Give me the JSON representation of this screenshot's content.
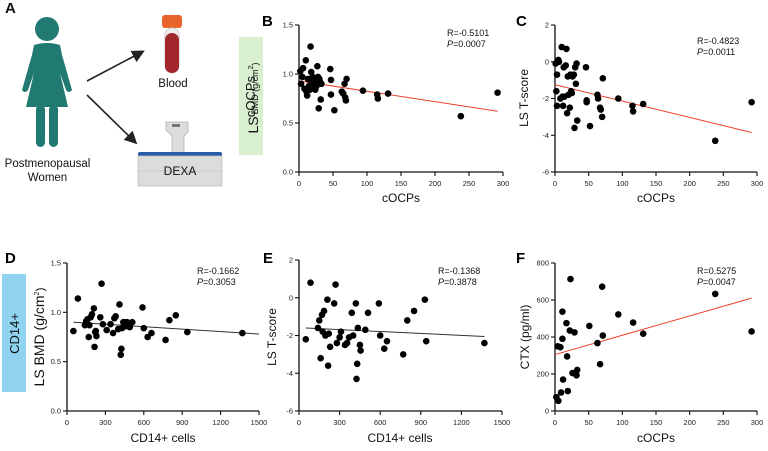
{
  "panel_a": {
    "letter": "A",
    "subject_label_line1": "Postmenopausal",
    "subject_label_line2": "Women",
    "blood_label": "Blood",
    "dexa_label": "DEXA",
    "colors": {
      "figure": "#217a72",
      "tube_cap": "#e8642a",
      "tube_blood": "#a3262c",
      "dexa_top": "#2a5ca8",
      "dexa_body": "#dcdcdc"
    }
  },
  "row_labels": {
    "top": {
      "text": "cOCPs",
      "color": "#d8f0cf"
    },
    "bottom": {
      "text": "CD14+",
      "color": "#8fd3f0"
    }
  },
  "chart_data": [
    {
      "id": "B",
      "letter": "B",
      "type": "scatter",
      "xlabel": "cOCPs",
      "ylabel_main": "LS",
      "ylabel_sub": "BMD (g/cm",
      "ylabel_sup": "2",
      "ylabel_close": ")",
      "xlim": [
        0,
        300
      ],
      "ylim": [
        0,
        1.5
      ],
      "xticks": [
        0,
        50,
        100,
        150,
        200,
        250,
        300
      ],
      "yticks": [
        0.0,
        0.5,
        1.0,
        1.5
      ],
      "ytick_labels": [
        "0.0",
        "0.5",
        "1.0",
        "1.5"
      ],
      "stat_r": "R=-0.5101",
      "stat_p_label": "P",
      "stat_p": "=0.0007",
      "fit_color": "#e8402a",
      "fit": [
        [
          0,
          0.93
        ],
        [
          292,
          0.62
        ]
      ],
      "x": [
        2,
        3,
        5,
        6,
        8,
        10,
        11,
        12,
        13,
        15,
        16,
        17,
        18,
        19,
        20,
        21,
        22,
        23,
        24,
        25,
        26,
        27,
        28,
        29,
        30,
        31,
        32,
        33,
        46,
        47,
        47,
        52,
        63,
        65,
        67,
        68,
        69,
        70,
        94,
        115,
        116,
        131,
        238,
        292
      ],
      "y": [
        1.03,
        0.9,
        0.97,
        1.06,
        0.85,
        1.14,
        0.82,
        0.78,
        0.95,
        0.88,
        0.84,
        1.28,
        1.02,
        0.93,
        0.97,
        0.9,
        0.96,
        0.86,
        0.84,
        0.92,
        0.88,
        1.08,
        0.97,
        0.65,
        0.95,
        0.92,
        0.74,
        0.9,
        1.05,
        0.94,
        0.79,
        0.63,
        0.82,
        0.8,
        0.9,
        0.76,
        0.73,
        0.95,
        0.83,
        0.79,
        0.75,
        0.8,
        0.57,
        0.81
      ]
    },
    {
      "id": "C",
      "letter": "C",
      "type": "scatter",
      "xlabel": "cOCPs",
      "ylabel": "LS T-score",
      "xlim": [
        0,
        300
      ],
      "ylim": [
        -6,
        2
      ],
      "xticks": [
        0,
        50,
        100,
        150,
        200,
        250,
        300
      ],
      "yticks": [
        -6,
        -4,
        -2,
        0,
        2
      ],
      "ytick_labels": [
        "-6",
        "-4",
        "-2",
        "0",
        "2"
      ],
      "stat_r": "R=-0.4823",
      "stat_p_label": "P",
      "stat_p": "=0.0011",
      "fit_color": "#e8402a",
      "fit": [
        [
          0,
          -1.25
        ],
        [
          292,
          -3.85
        ]
      ],
      "x": [
        1,
        2,
        3,
        3,
        5,
        6,
        8,
        10,
        11,
        12,
        13,
        14,
        16,
        17,
        18,
        19,
        20,
        22,
        23,
        24,
        25,
        26,
        28,
        29,
        30,
        31,
        32,
        33,
        46,
        47,
        47,
        52,
        63,
        64,
        67,
        68,
        70,
        71,
        94,
        115,
        116,
        131,
        238,
        292
      ],
      "y": [
        -0.1,
        -1.6,
        -0.7,
        -2.4,
        0.1,
        0.0,
        -2.0,
        0.8,
        -1.9,
        -2.4,
        -0.3,
        -1.9,
        -0.2,
        0.7,
        -2.8,
        -0.8,
        -1.8,
        -2.5,
        -0.7,
        -1.6,
        -1.7,
        -0.8,
        -0.7,
        -3.6,
        -0.3,
        -1.2,
        -0.1,
        -3.2,
        -0.3,
        -2.2,
        -2.1,
        -3.5,
        -1.8,
        -2.0,
        -2.5,
        -2.6,
        -3.0,
        -0.9,
        -2.0,
        -2.4,
        -2.7,
        -2.3,
        -4.3,
        -2.2
      ]
    },
    {
      "id": "D",
      "letter": "D",
      "type": "scatter",
      "xlabel": "CD14+ cells",
      "ylabel_main": "LS BMD (g/cm",
      "ylabel_sup": "2",
      "ylabel_close": ")",
      "xlim": [
        0,
        1500
      ],
      "ylim": [
        0,
        1.5
      ],
      "xticks": [
        0,
        300,
        600,
        900,
        1200,
        1500
      ],
      "yticks": [
        0.0,
        0.5,
        1.0,
        1.5
      ],
      "ytick_labels": [
        "0.0",
        "0.5",
        "1.0",
        "1.5"
      ],
      "stat_r": "R=-0.1662",
      "stat_p_label": "P",
      "stat_p": "=0.3053",
      "fit_color": "#333333",
      "fit": [
        [
          50,
          0.9
        ],
        [
          1500,
          0.78
        ]
      ],
      "x": [
        50,
        85,
        140,
        150,
        160,
        170,
        175,
        185,
        195,
        210,
        215,
        220,
        225,
        230,
        260,
        270,
        280,
        310,
        340,
        360,
        370,
        380,
        400,
        410,
        420,
        425,
        430,
        440,
        450,
        460,
        470,
        490,
        510,
        590,
        600,
        630,
        660,
        770,
        800,
        850,
        940,
        1370
      ],
      "y": [
        0.81,
        1.14,
        0.87,
        0.91,
        0.93,
        0.75,
        0.87,
        0.95,
        0.98,
        1.04,
        0.65,
        0.8,
        0.81,
        0.76,
        0.95,
        1.29,
        0.88,
        0.82,
        0.88,
        0.79,
        0.94,
        0.96,
        0.83,
        1.08,
        0.57,
        0.63,
        0.84,
        0.9,
        0.9,
        0.86,
        0.9,
        0.85,
        0.9,
        1.05,
        0.84,
        0.75,
        0.79,
        0.72,
        0.92,
        0.97,
        0.8,
        0.79
      ]
    },
    {
      "id": "E",
      "letter": "E",
      "type": "scatter",
      "xlabel": "CD14+ cells",
      "ylabel": "LS T-score",
      "xlim": [
        0,
        1500
      ],
      "ylim": [
        -6,
        2
      ],
      "xticks": [
        0,
        300,
        600,
        900,
        1200,
        1500
      ],
      "yticks": [
        -6,
        -4,
        -2,
        0,
        2
      ],
      "ytick_labels": [
        "-6",
        "-4",
        "-2",
        "0",
        "2"
      ],
      "stat_r": "R=-0.1368",
      "stat_p_label": "P",
      "stat_p": "=0.3878",
      "fit_color": "#333333",
      "fit": [
        [
          50,
          -1.6
        ],
        [
          1370,
          -2.05
        ]
      ],
      "x": [
        50,
        85,
        140,
        150,
        160,
        170,
        175,
        185,
        195,
        210,
        215,
        220,
        230,
        260,
        270,
        280,
        300,
        310,
        340,
        355,
        370,
        390,
        400,
        420,
        425,
        430,
        435,
        450,
        455,
        490,
        510,
        590,
        600,
        630,
        650,
        770,
        800,
        850,
        930,
        940,
        1370
      ],
      "y": [
        -2.2,
        0.8,
        -1.6,
        -1.2,
        -3.2,
        -0.9,
        -1.8,
        -0.7,
        -2.0,
        -0.1,
        -3.6,
        -1.9,
        -2.6,
        -0.3,
        0.7,
        -2.4,
        -2.1,
        -1.8,
        -2.5,
        -2.4,
        -2.1,
        -0.8,
        -2.0,
        -0.3,
        -4.3,
        -3.5,
        -1.6,
        -2.5,
        -2.8,
        -1.7,
        -0.8,
        -0.3,
        -2.0,
        -2.7,
        -2.3,
        -3.0,
        -1.2,
        -0.7,
        -0.1,
        -2.3,
        -2.4
      ]
    },
    {
      "id": "F",
      "letter": "F",
      "type": "scatter",
      "xlabel": "cOCPs",
      "ylabel": "CTX (pg/ml)",
      "xlim": [
        0,
        300
      ],
      "ylim": [
        0,
        800
      ],
      "xticks": [
        0,
        50,
        100,
        150,
        200,
        250,
        300
      ],
      "yticks": [
        0,
        200,
        400,
        600,
        800
      ],
      "ytick_labels": [
        "0",
        "200",
        "400",
        "600",
        "800"
      ],
      "stat_r": "R=0.5275",
      "stat_p_label": "P",
      "stat_p": "=0.0047",
      "fit_color": "#e8402a",
      "fit": [
        [
          0,
          305
        ],
        [
          292,
          610
        ]
      ],
      "x": [
        2,
        4,
        5,
        8,
        9,
        11,
        11,
        12,
        17,
        18,
        19,
        22,
        23,
        26,
        29,
        31,
        32,
        33,
        51,
        63,
        67,
        70,
        71,
        94,
        116,
        131,
        238,
        292
      ],
      "y": [
        75,
        350,
        55,
        345,
        100,
        537,
        390,
        170,
        475,
        295,
        108,
        435,
        713,
        205,
        425,
        208,
        193,
        222,
        460,
        367,
        253,
        672,
        408,
        522,
        478,
        418,
        633,
        430
      ]
    }
  ]
}
